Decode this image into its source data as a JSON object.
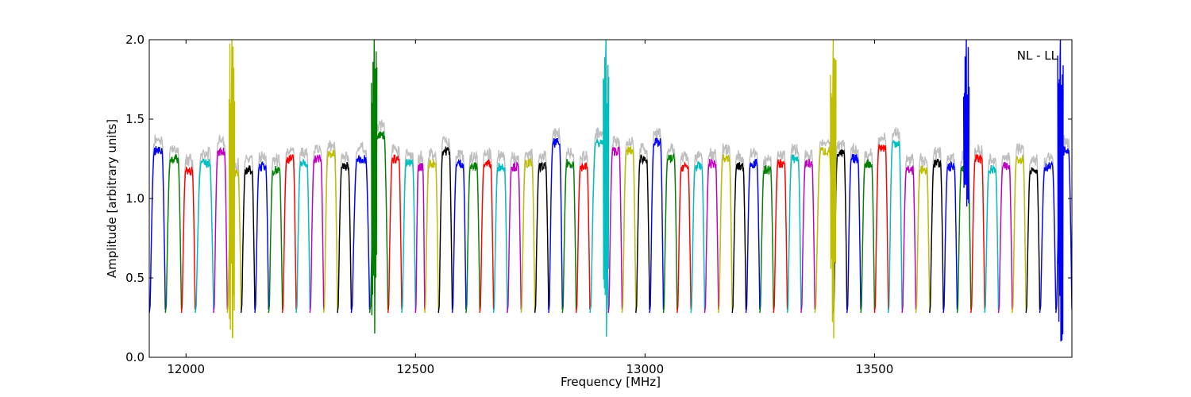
{
  "chart_data": {
    "type": "line",
    "title": "",
    "annotation": "NL - LL",
    "xlabel": "Frequency [MHz]",
    "ylabel": "Amplitude [arbitrary units]",
    "xlim": [
      11920,
      13930
    ],
    "ylim": [
      0.0,
      2.0
    ],
    "xticks": [
      12000,
      12500,
      13000,
      13500
    ],
    "xtick_labels": [
      "12000",
      "12500",
      "13000",
      "13500"
    ],
    "yticks": [
      0.0,
      0.5,
      1.0,
      1.5,
      2.0
    ],
    "ytick_labels": [
      "0.0",
      "0.5",
      "1.0",
      "1.5",
      "2.0"
    ],
    "grid": false,
    "legend": "none",
    "band_colors": [
      "#0000ff",
      "#008000",
      "#ff0000",
      "#00bfbf",
      "#bf00bf",
      "#bfbf00",
      "#000000"
    ],
    "background_trace_color": "#bfbfbf",
    "bands": [
      {
        "x_start": 11920,
        "x_end": 11955,
        "plateau": 1.3,
        "color": "#0000ff"
      },
      {
        "x_start": 11955,
        "x_end": 11990,
        "plateau": 1.25,
        "color": "#008000"
      },
      {
        "x_start": 11990,
        "x_end": 12020,
        "plateau": 1.18,
        "color": "#ff0000"
      },
      {
        "x_start": 12020,
        "x_end": 12060,
        "plateau": 1.22,
        "color": "#00bfbf"
      },
      {
        "x_start": 12060,
        "x_end": 12090,
        "plateau": 1.3,
        "color": "#bf00bf"
      },
      {
        "x_start": 12090,
        "x_end": 12120,
        "plateau": 1.15,
        "color": "#bfbf00"
      },
      {
        "x_start": 12120,
        "x_end": 12150,
        "plateau": 1.18,
        "color": "#000000"
      },
      {
        "x_start": 12150,
        "x_end": 12180,
        "plateau": 1.2,
        "color": "#0000ff"
      },
      {
        "x_start": 12180,
        "x_end": 12210,
        "plateau": 1.18,
        "color": "#008000"
      },
      {
        "x_start": 12210,
        "x_end": 12240,
        "plateau": 1.25,
        "color": "#ff0000"
      },
      {
        "x_start": 12240,
        "x_end": 12270,
        "plateau": 1.22,
        "color": "#00bfbf"
      },
      {
        "x_start": 12270,
        "x_end": 12300,
        "plateau": 1.25,
        "color": "#bf00bf"
      },
      {
        "x_start": 12300,
        "x_end": 12330,
        "plateau": 1.28,
        "color": "#bfbf00"
      },
      {
        "x_start": 12330,
        "x_end": 12360,
        "plateau": 1.2,
        "color": "#000000"
      },
      {
        "x_start": 12360,
        "x_end": 12400,
        "plateau": 1.25,
        "color": "#0000ff"
      },
      {
        "x_start": 12400,
        "x_end": 12440,
        "plateau": 1.4,
        "color": "#008000"
      },
      {
        "x_start": 12440,
        "x_end": 12470,
        "plateau": 1.25,
        "color": "#ff0000"
      },
      {
        "x_start": 12470,
        "x_end": 12500,
        "plateau": 1.22,
        "color": "#00bfbf"
      },
      {
        "x_start": 12500,
        "x_end": 12520,
        "plateau": 1.2,
        "color": "#bf00bf"
      },
      {
        "x_start": 12520,
        "x_end": 12550,
        "plateau": 1.22,
        "color": "#bfbf00"
      },
      {
        "x_start": 12550,
        "x_end": 12580,
        "plateau": 1.3,
        "color": "#000000"
      },
      {
        "x_start": 12580,
        "x_end": 12610,
        "plateau": 1.22,
        "color": "#0000ff"
      },
      {
        "x_start": 12610,
        "x_end": 12640,
        "plateau": 1.2,
        "color": "#008000"
      },
      {
        "x_start": 12640,
        "x_end": 12670,
        "plateau": 1.22,
        "color": "#ff0000"
      },
      {
        "x_start": 12670,
        "x_end": 12700,
        "plateau": 1.2,
        "color": "#00bfbf"
      },
      {
        "x_start": 12700,
        "x_end": 12730,
        "plateau": 1.2,
        "color": "#bf00bf"
      },
      {
        "x_start": 12730,
        "x_end": 12760,
        "plateau": 1.22,
        "color": "#bfbf00"
      },
      {
        "x_start": 12760,
        "x_end": 12790,
        "plateau": 1.2,
        "color": "#000000"
      },
      {
        "x_start": 12790,
        "x_end": 12820,
        "plateau": 1.35,
        "color": "#0000ff"
      },
      {
        "x_start": 12820,
        "x_end": 12850,
        "plateau": 1.22,
        "color": "#008000"
      },
      {
        "x_start": 12850,
        "x_end": 12880,
        "plateau": 1.2,
        "color": "#ff0000"
      },
      {
        "x_start": 12880,
        "x_end": 12920,
        "plateau": 1.35,
        "color": "#00bfbf"
      },
      {
        "x_start": 12920,
        "x_end": 12950,
        "plateau": 1.3,
        "color": "#bf00bf"
      },
      {
        "x_start": 12950,
        "x_end": 12980,
        "plateau": 1.3,
        "color": "#bfbf00"
      },
      {
        "x_start": 12980,
        "x_end": 13010,
        "plateau": 1.25,
        "color": "#000000"
      },
      {
        "x_start": 13010,
        "x_end": 13040,
        "plateau": 1.35,
        "color": "#0000ff"
      },
      {
        "x_start": 13040,
        "x_end": 13070,
        "plateau": 1.25,
        "color": "#008000"
      },
      {
        "x_start": 13070,
        "x_end": 13100,
        "plateau": 1.2,
        "color": "#ff0000"
      },
      {
        "x_start": 13100,
        "x_end": 13130,
        "plateau": 1.2,
        "color": "#00bfbf"
      },
      {
        "x_start": 13130,
        "x_end": 13160,
        "plateau": 1.22,
        "color": "#bf00bf"
      },
      {
        "x_start": 13160,
        "x_end": 13190,
        "plateau": 1.25,
        "color": "#bfbf00"
      },
      {
        "x_start": 13190,
        "x_end": 13220,
        "plateau": 1.2,
        "color": "#000000"
      },
      {
        "x_start": 13220,
        "x_end": 13250,
        "plateau": 1.22,
        "color": "#0000ff"
      },
      {
        "x_start": 13250,
        "x_end": 13280,
        "plateau": 1.18,
        "color": "#008000"
      },
      {
        "x_start": 13280,
        "x_end": 13310,
        "plateau": 1.22,
        "color": "#ff0000"
      },
      {
        "x_start": 13310,
        "x_end": 13340,
        "plateau": 1.25,
        "color": "#00bfbf"
      },
      {
        "x_start": 13340,
        "x_end": 13370,
        "plateau": 1.22,
        "color": "#bf00bf"
      },
      {
        "x_start": 13370,
        "x_end": 13410,
        "plateau": 1.3,
        "color": "#bfbf00"
      },
      {
        "x_start": 13410,
        "x_end": 13440,
        "plateau": 1.28,
        "color": "#000000"
      },
      {
        "x_start": 13440,
        "x_end": 13470,
        "plateau": 1.25,
        "color": "#0000ff"
      },
      {
        "x_start": 13470,
        "x_end": 13500,
        "plateau": 1.22,
        "color": "#008000"
      },
      {
        "x_start": 13500,
        "x_end": 13530,
        "plateau": 1.32,
        "color": "#ff0000"
      },
      {
        "x_start": 13530,
        "x_end": 13560,
        "plateau": 1.35,
        "color": "#00bfbf"
      },
      {
        "x_start": 13560,
        "x_end": 13590,
        "plateau": 1.18,
        "color": "#bf00bf"
      },
      {
        "x_start": 13590,
        "x_end": 13620,
        "plateau": 1.18,
        "color": "#bfbf00"
      },
      {
        "x_start": 13620,
        "x_end": 13650,
        "plateau": 1.22,
        "color": "#000000"
      },
      {
        "x_start": 13650,
        "x_end": 13680,
        "plateau": 1.2,
        "color": "#0000ff"
      },
      {
        "x_start": 13680,
        "x_end": 13710,
        "plateau": 1.2,
        "color": "#008000"
      },
      {
        "x_start": 13710,
        "x_end": 13740,
        "plateau": 1.25,
        "color": "#ff0000"
      },
      {
        "x_start": 13740,
        "x_end": 13770,
        "plateau": 1.18,
        "color": "#00bfbf"
      },
      {
        "x_start": 13770,
        "x_end": 13800,
        "plateau": 1.2,
        "color": "#bf00bf"
      },
      {
        "x_start": 13800,
        "x_end": 13830,
        "plateau": 1.25,
        "color": "#bfbf00"
      },
      {
        "x_start": 13830,
        "x_end": 13860,
        "plateau": 1.18,
        "color": "#000000"
      },
      {
        "x_start": 13860,
        "x_end": 13895,
        "plateau": 1.2,
        "color": "#0000ff"
      },
      {
        "x_start": 13895,
        "x_end": 13930,
        "plateau": 1.3,
        "color": "#0000ff"
      }
    ],
    "spikes": [
      {
        "x": 12100,
        "y_top": 2.0,
        "y_bottom": 0.12,
        "color": "#bfbf00"
      },
      {
        "x": 12410,
        "y_top": 2.0,
        "y_bottom": 0.15,
        "color": "#008000"
      },
      {
        "x": 12915,
        "y_top": 2.0,
        "y_bottom": 0.13,
        "color": "#00bfbf"
      },
      {
        "x": 13410,
        "y_top": 2.0,
        "y_bottom": 0.12,
        "color": "#bfbf00"
      },
      {
        "x": 13700,
        "y_top": 2.0,
        "y_bottom": 0.95,
        "color": "#0000ff"
      },
      {
        "x": 13905,
        "y_top": 2.0,
        "y_bottom": 0.1,
        "color": "#0000ff"
      }
    ]
  }
}
